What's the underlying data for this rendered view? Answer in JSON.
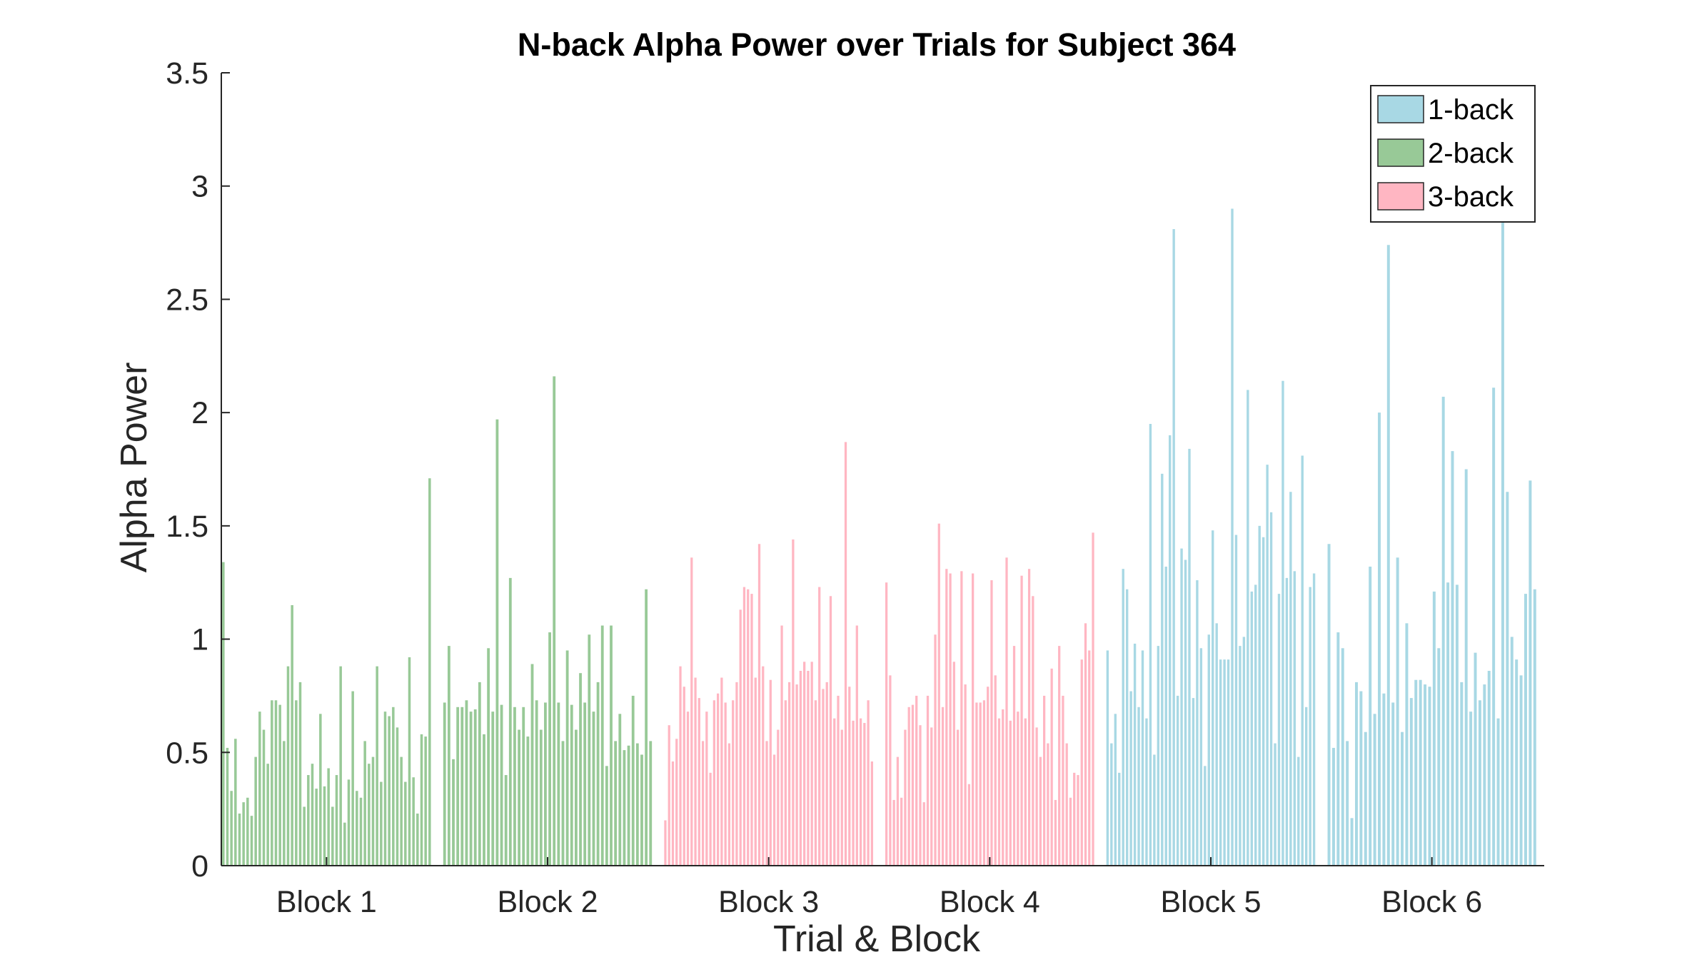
{
  "chart_data": {
    "type": "bar",
    "title": "N-back Alpha Power over Trials for Subject 364",
    "xlabel": "Trial & Block",
    "ylabel": "Alpha Power",
    "ylim": [
      0,
      3.5
    ],
    "yticks": [
      "0",
      "0.5",
      "1",
      "1.5",
      "2",
      "2.5",
      "3",
      "3.5"
    ],
    "grid": false,
    "legend_position": "top-right",
    "legend": [
      {
        "label": "1-back",
        "color": "#a8d8e4"
      },
      {
        "label": "2-back",
        "color": "#98c997"
      },
      {
        "label": "3-back",
        "color": "#ffb6c2"
      }
    ],
    "categories": [
      "Block 1",
      "Block 2",
      "Block 3",
      "Block 4",
      "Block 5",
      "Block 6"
    ],
    "blocks": [
      {
        "label": "Block 1",
        "condition": "2-back",
        "values": [
          1.34,
          0.52,
          0.33,
          0.56,
          0.23,
          0.28,
          0.3,
          0.22,
          0.48,
          0.68,
          0.6,
          0.45,
          0.73,
          0.73,
          0.71,
          0.55,
          0.88,
          1.15,
          0.73,
          0.81,
          0.26,
          0.4,
          0.45,
          0.34,
          0.67,
          0.35,
          0.43,
          0.26,
          0.4,
          0.88,
          0.19,
          0.38,
          0.77,
          0.33,
          0.3,
          0.55,
          0.45,
          0.48,
          0.88,
          0.37,
          0.68,
          0.66,
          0.7,
          0.61,
          0.48,
          0.37,
          0.92,
          0.39,
          0.23,
          0.58,
          0.57,
          1.71
        ]
      },
      {
        "label": "Block 2",
        "condition": "2-back",
        "values": [
          0.72,
          0.97,
          0.47,
          0.7,
          0.7,
          0.73,
          0.68,
          0.69,
          0.81,
          0.58,
          0.96,
          0.68,
          1.97,
          0.71,
          0.4,
          1.27,
          0.7,
          0.6,
          0.7,
          0.57,
          0.89,
          0.73,
          0.6,
          0.72,
          1.03,
          2.16,
          0.72,
          0.55,
          0.95,
          0.71,
          0.6,
          0.85,
          0.72,
          1.02,
          0.68,
          0.81,
          1.06,
          0.44,
          1.06,
          0.55,
          0.67,
          0.51,
          0.53,
          0.75,
          0.54,
          0.49,
          1.22,
          0.55
        ]
      },
      {
        "label": "Block 3",
        "condition": "3-back",
        "values": [
          0.2,
          0.62,
          0.46,
          0.56,
          0.88,
          0.79,
          0.68,
          1.36,
          0.83,
          0.74,
          0.55,
          0.68,
          0.41,
          0.73,
          0.76,
          0.83,
          0.72,
          0.54,
          0.73,
          0.81,
          1.13,
          1.23,
          1.22,
          1.2,
          0.83,
          1.42,
          0.88,
          0.55,
          0.82,
          0.49,
          0.6,
          1.06,
          0.73,
          0.81,
          1.44,
          0.8,
          0.86,
          0.9,
          0.86,
          0.9,
          0.73,
          1.23,
          0.78,
          0.81,
          1.19,
          0.65,
          0.75,
          0.6,
          1.87,
          0.79,
          0.64,
          1.06,
          0.65,
          0.63,
          0.73,
          0.46
        ]
      },
      {
        "label": "Block 4",
        "condition": "3-back",
        "values": [
          1.25,
          0.84,
          0.29,
          0.48,
          0.3,
          0.6,
          0.7,
          0.71,
          0.75,
          0.62,
          0.28,
          0.75,
          0.61,
          1.02,
          1.51,
          0.7,
          1.31,
          1.29,
          0.9,
          0.6,
          1.3,
          0.8,
          0.36,
          1.29,
          0.72,
          0.72,
          0.73,
          0.79,
          1.26,
          0.84,
          0.65,
          0.69,
          1.36,
          0.64,
          0.97,
          0.68,
          1.28,
          0.65,
          1.31,
          1.19,
          0.61,
          0.48,
          0.75,
          0.54,
          0.87,
          0.29,
          0.97,
          0.75,
          0.54,
          0.3,
          0.41,
          0.4,
          0.91,
          1.07,
          0.95,
          1.47
        ]
      },
      {
        "label": "Block 5",
        "condition": "1-back",
        "values": [
          0.95,
          0.54,
          0.67,
          0.41,
          1.31,
          1.22,
          0.77,
          0.98,
          0.7,
          0.95,
          0.65,
          1.95,
          0.49,
          0.97,
          1.73,
          1.32,
          1.9,
          2.81,
          0.75,
          1.4,
          1.35,
          1.84,
          0.74,
          1.26,
          0.96,
          0.44,
          1.02,
          1.48,
          1.07,
          0.91,
          0.91,
          0.91,
          2.9,
          1.46,
          0.97,
          1.01,
          2.1,
          1.21,
          1.24,
          1.5,
          1.45,
          1.77,
          1.56,
          0.54,
          1.2,
          2.14,
          1.27,
          1.65,
          1.3,
          0.48,
          1.81,
          0.7,
          1.23,
          1.29
        ]
      },
      {
        "label": "Block 6",
        "condition": "1-back",
        "values": [
          1.42,
          0.52,
          1.03,
          0.96,
          0.55,
          0.21,
          0.81,
          0.77,
          0.59,
          1.32,
          0.67,
          2.0,
          0.76,
          2.74,
          0.72,
          1.36,
          0.59,
          1.07,
          0.74,
          0.82,
          0.82,
          0.8,
          0.79,
          1.21,
          0.96,
          2.07,
          1.25,
          1.83,
          1.24,
          0.81,
          1.75,
          0.68,
          0.94,
          0.73,
          0.8,
          0.86,
          2.11,
          0.65,
          2.87,
          1.65,
          1.01,
          0.91,
          0.84,
          1.2,
          1.7,
          1.22
        ]
      }
    ]
  }
}
